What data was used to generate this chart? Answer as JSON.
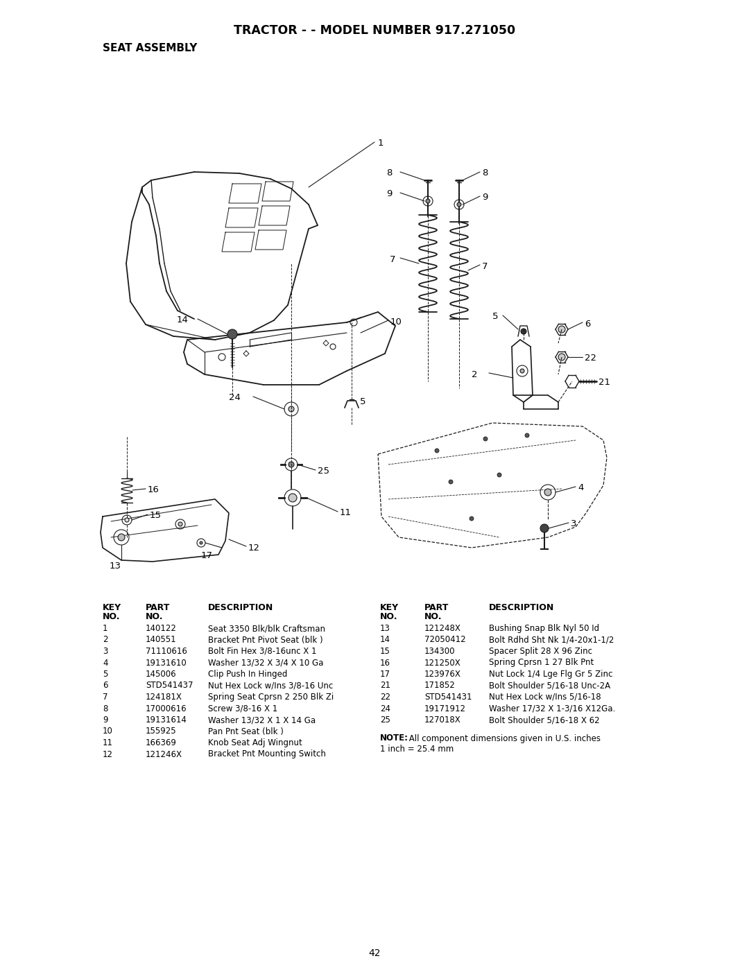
{
  "title": "TRACTOR - - MODEL NUMBER 917.271050",
  "subtitle": "SEAT ASSEMBLY",
  "page_number": "42",
  "background_color": "#ffffff",
  "left_parts": [
    [
      "1",
      "140122",
      "Seat 3350 Blk/blk Craftsman"
    ],
    [
      "2",
      "140551",
      "Bracket Pnt Pivot Seat (blk )"
    ],
    [
      "3",
      "71110616",
      "Bolt Fin Hex 3/8-16unc X 1"
    ],
    [
      "4",
      "19131610",
      "Washer 13/32 X 3/4 X 10 Ga"
    ],
    [
      "5",
      "145006",
      "Clip Push In Hinged"
    ],
    [
      "6",
      "STD541437",
      "Nut Hex Lock w/Ins 3/8-16 Unc"
    ],
    [
      "7",
      "124181X",
      "Spring Seat Cprsn 2 250 Blk Zi"
    ],
    [
      "8",
      "17000616",
      "Screw 3/8-16 X 1"
    ],
    [
      "9",
      "19131614",
      "Washer 13/32 X 1 X 14 Ga"
    ],
    [
      "10",
      "155925",
      "Pan Pnt Seat (blk )"
    ],
    [
      "11",
      "166369",
      "Knob Seat Adj Wingnut"
    ],
    [
      "12",
      "121246X",
      "Bracket Pnt Mounting Switch"
    ]
  ],
  "right_parts": [
    [
      "13",
      "121248X",
      "Bushing Snap Blk Nyl 50 Id"
    ],
    [
      "14",
      "72050412",
      "Bolt Rdhd Sht Nk 1/4-20x1-1/2"
    ],
    [
      "15",
      "134300",
      "Spacer Split 28 X 96 Zinc"
    ],
    [
      "16",
      "121250X",
      "Spring Cprsn 1 27 Blk Pnt"
    ],
    [
      "17",
      "123976X",
      "Nut Lock 1/4 Lge Flg Gr 5 Zinc"
    ],
    [
      "21",
      "171852",
      "Bolt Shoulder 5/16-18 Unc-2A"
    ],
    [
      "22",
      "STD541431",
      "Nut Hex Lock w/Ins 5/16-18"
    ],
    [
      "24",
      "19171912",
      "Washer 17/32 X 1-3/16 X12Ga."
    ],
    [
      "25",
      "127018X",
      "Bolt Shoulder 5/16-18 X 62"
    ]
  ],
  "note_line1": "NOTE: All component dimensions given in U.S. inches",
  "note_line2": "1 inch = 25.4 mm",
  "fig_width": 10.8,
  "fig_height": 14.02
}
